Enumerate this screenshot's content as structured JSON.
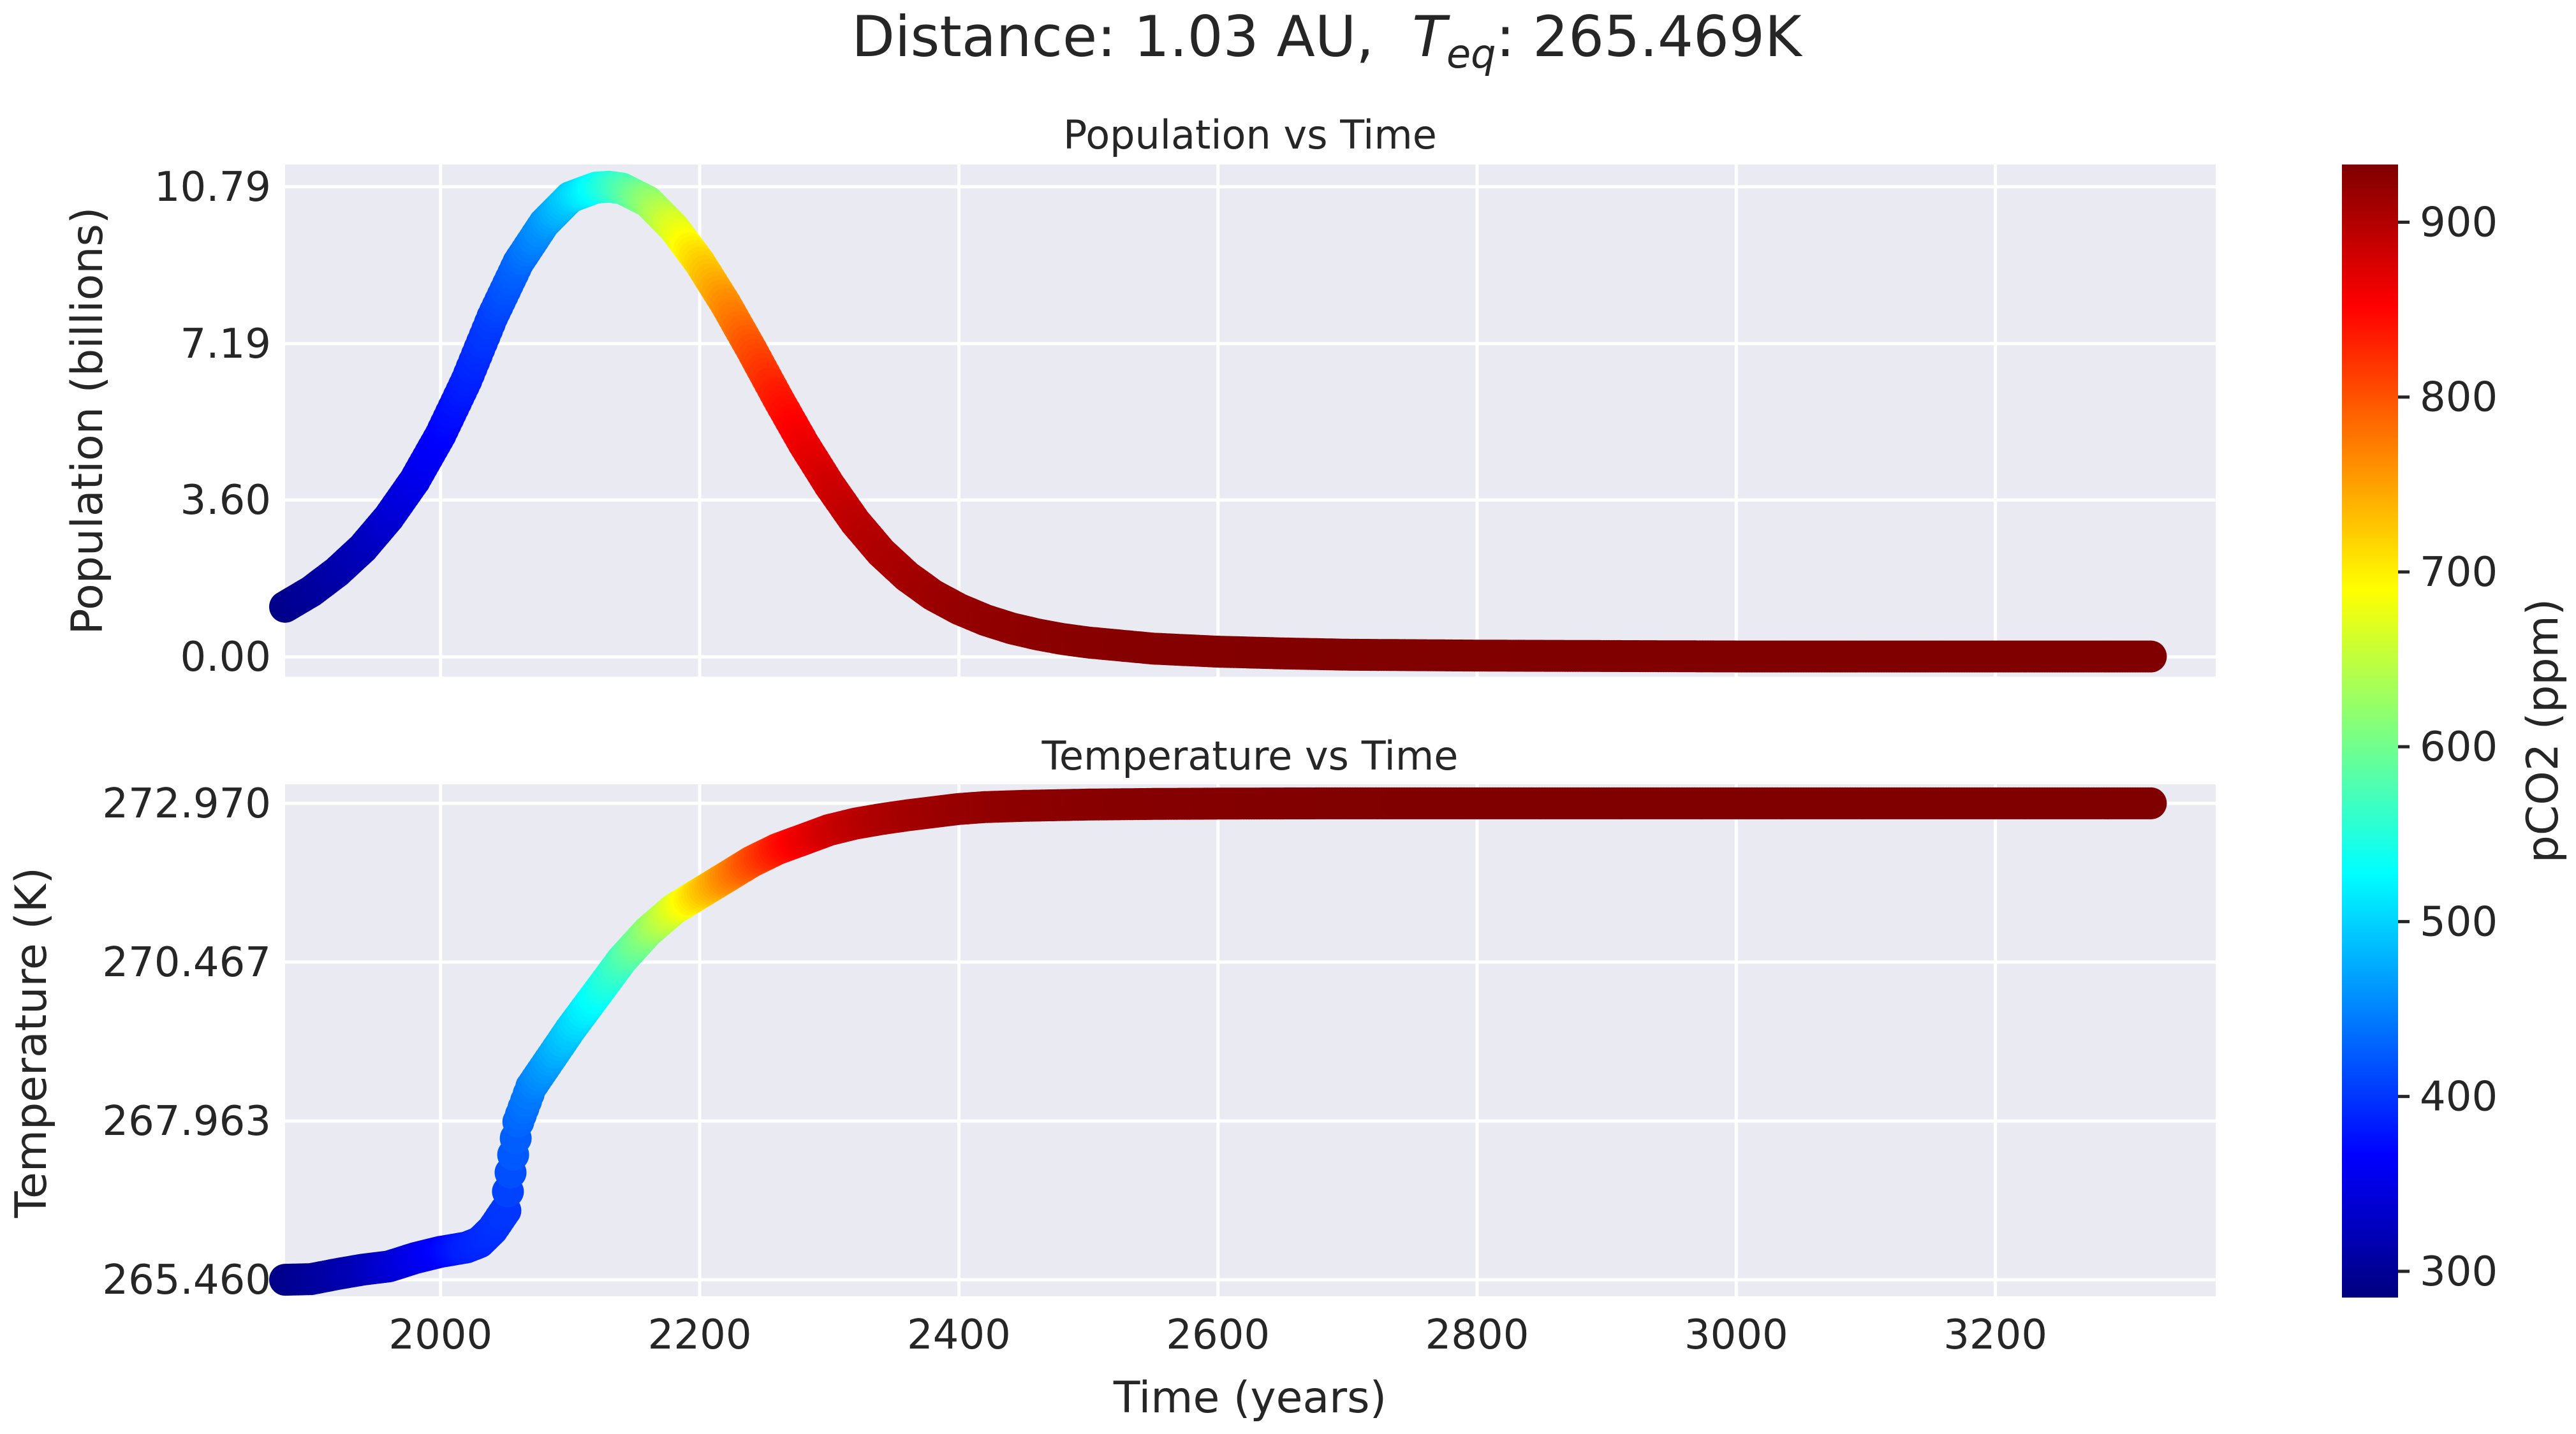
{
  "suptitle": {
    "prefix": "Distance: 1.03 AU,",
    "teq_symbol": "T",
    "teq_subscript": "eq",
    "teq_value": ": 265.469K"
  },
  "colors": {
    "panel_bg": "#eaeaf2",
    "grid": "#ffffff",
    "text": "#262626",
    "colormap": "jet"
  },
  "chart_data": [
    {
      "type": "scatter",
      "title": "Population vs Time",
      "xlabel": "",
      "ylabel": "Population (billions)",
      "xlim": [
        1880,
        3370
      ],
      "ylim": [
        -0.45,
        11.3
      ],
      "grid": true,
      "x_ticks": [
        2000,
        2200,
        2400,
        2600,
        2800,
        3000,
        3200
      ],
      "x_tick_labels_shown": false,
      "y_ticks": [
        0.0,
        3.6,
        7.19,
        10.79
      ],
      "y_tick_labels": [
        "0.00",
        "3.60",
        "7.19",
        "10.79"
      ],
      "color_by": "pCO2 (ppm)",
      "series": [
        {
          "x": [
            1880,
            1900,
            1920,
            1940,
            1960,
            1980,
            2000,
            2020,
            2040,
            2060,
            2080,
            2100,
            2120,
            2130,
            2140,
            2160,
            2180,
            2200,
            2220,
            2240,
            2260,
            2280,
            2300,
            2320,
            2340,
            2360,
            2380,
            2400,
            2420,
            2440,
            2460,
            2480,
            2500,
            2550,
            2600,
            2650,
            2700,
            2750,
            2800,
            2900,
            3000,
            3100,
            3200,
            3320
          ],
          "y": [
            1.15,
            1.5,
            1.95,
            2.5,
            3.2,
            4.05,
            5.1,
            6.35,
            7.8,
            9.05,
            9.95,
            10.55,
            10.77,
            10.79,
            10.75,
            10.45,
            9.85,
            9.05,
            8.1,
            7.05,
            5.95,
            4.9,
            3.95,
            3.1,
            2.4,
            1.85,
            1.42,
            1.1,
            0.85,
            0.66,
            0.52,
            0.41,
            0.33,
            0.19,
            0.12,
            0.08,
            0.05,
            0.04,
            0.03,
            0.02,
            0.01,
            0.01,
            0.01,
            0.01
          ],
          "c": [
            290,
            300,
            310,
            320,
            335,
            350,
            365,
            385,
            405,
            430,
            460,
            495,
            530,
            550,
            570,
            615,
            665,
            715,
            760,
            800,
            835,
            860,
            880,
            893,
            902,
            908,
            913,
            917,
            920,
            922,
            924,
            926,
            927,
            929,
            930,
            931,
            932,
            932,
            932,
            933,
            933,
            933,
            933,
            933
          ]
        }
      ]
    },
    {
      "type": "scatter",
      "title": "Temperature vs Time",
      "xlabel": "Time (years)",
      "ylabel": "Temperature (K)",
      "xlim": [
        1880,
        3370
      ],
      "ylim": [
        265.2,
        273.27
      ],
      "grid": true,
      "x_ticks": [
        2000,
        2200,
        2400,
        2600,
        2800,
        3000,
        3200
      ],
      "x_tick_labels": [
        "2000",
        "2200",
        "2400",
        "2600",
        "2800",
        "3000",
        "3200"
      ],
      "y_ticks": [
        265.46,
        267.963,
        270.467,
        272.97
      ],
      "y_tick_labels": [
        "265.460",
        "267.963",
        "270.467",
        "272.970"
      ],
      "color_by": "pCO2 (ppm)",
      "series": [
        {
          "x": [
            1880,
            1900,
            1920,
            1940,
            1960,
            1980,
            2000,
            2020,
            2030,
            2040,
            2050,
            2055,
            2060,
            2070,
            2080,
            2100,
            2120,
            2140,
            2160,
            2180,
            2200,
            2220,
            2240,
            2260,
            2280,
            2300,
            2320,
            2340,
            2360,
            2380,
            2400,
            2420,
            2450,
            2500,
            2550,
            2600,
            2650,
            2700,
            2800,
            2900,
            3000,
            3100,
            3200,
            3320
          ],
          "y": [
            265.46,
            265.47,
            265.55,
            265.62,
            265.67,
            265.8,
            265.9,
            265.97,
            266.05,
            266.25,
            266.55,
            267.3,
            267.95,
            268.5,
            268.8,
            269.4,
            269.95,
            270.5,
            270.95,
            271.3,
            271.55,
            271.8,
            272.05,
            272.25,
            272.4,
            272.55,
            272.65,
            272.72,
            272.78,
            272.83,
            272.88,
            272.91,
            272.93,
            272.95,
            272.96,
            272.965,
            272.968,
            272.97,
            272.97,
            272.97,
            272.97,
            272.97,
            272.97,
            272.97
          ],
          "c": [
            290,
            300,
            310,
            320,
            335,
            350,
            365,
            385,
            390,
            395,
            400,
            420,
            430,
            445,
            460,
            495,
            530,
            570,
            615,
            665,
            715,
            760,
            800,
            835,
            860,
            880,
            893,
            902,
            908,
            913,
            917,
            920,
            924,
            927,
            929,
            930,
            931,
            932,
            933,
            933,
            933,
            933,
            933,
            933
          ]
        }
      ]
    }
  ],
  "colorbar": {
    "label": "pCO2 (ppm)",
    "vmin": 285,
    "vmax": 933,
    "ticks": [
      300,
      400,
      500,
      600,
      700,
      800,
      900
    ],
    "tick_labels": [
      "300",
      "400",
      "500",
      "600",
      "700",
      "800",
      "900"
    ],
    "colormap": "jet"
  }
}
